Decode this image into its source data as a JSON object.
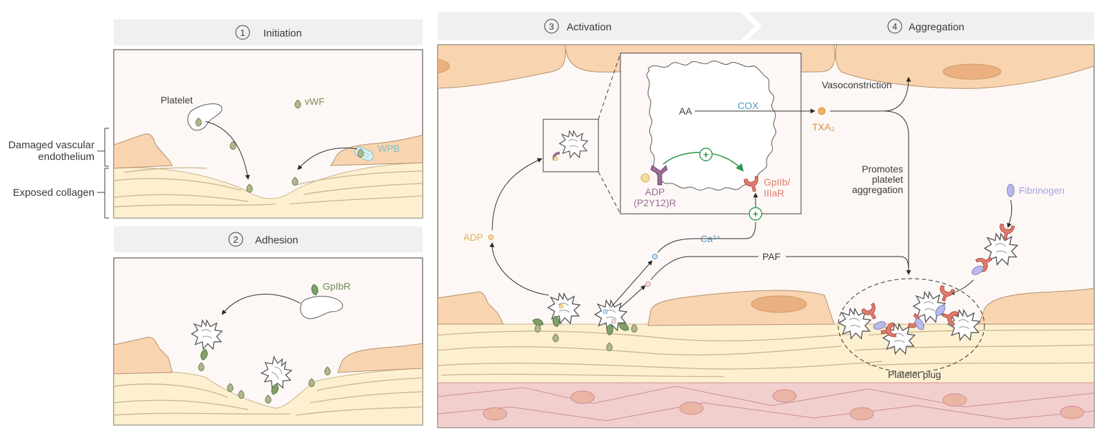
{
  "colors": {
    "panel_bg": "#fdf8f5",
    "header_bg": "#f0f0f0",
    "tissue": "#f8d5b0",
    "tissue_stroke": "#b38f6b",
    "collagen": "#fcf0d0",
    "collagen_stroke": "#c9b48a",
    "smooth_muscle": "#f2cfcf",
    "nucleus": "#ebb5a5",
    "vwf": "#9aa77a",
    "wpb": "#7fbfc3",
    "adp": "#d9b158",
    "receptor_adp": "#9a6b97",
    "gp2b3a": "#e07b6d",
    "txa2": "#d68e3b",
    "cox": "#4a9cc7",
    "ca": "#5a95c8",
    "green": "#2e9a4a",
    "fibrinogen": "#a3a3df",
    "text": "#3a3a3a"
  },
  "stages": {
    "initiation": {
      "number": "1",
      "label": "Initiation"
    },
    "adhesion": {
      "number": "2",
      "label": "Adhesion"
    },
    "activation": {
      "number": "3",
      "label": "Activation"
    },
    "aggregation": {
      "number": "4",
      "label": "Aggregation"
    }
  },
  "side_labels": {
    "damaged_line1": "Damaged vascular",
    "damaged_line2": "endothelium",
    "collagen": "Exposed collagen"
  },
  "initiation_labels": {
    "platelet": "Platelet",
    "vwf": "vWF",
    "wpb": "WPB"
  },
  "adhesion_labels": {
    "gpibr": "GpIbR"
  },
  "activation_labels": {
    "aa": "AA",
    "cox": "COX",
    "txa2": "TXA₂",
    "adp_receptor_line1": "ADP",
    "adp_receptor_line2": "(P2Y12)R",
    "gp_line1": "GpIIb/",
    "gp_line2": "IIIaR",
    "adp": "ADP",
    "ca": "Ca²⁺",
    "paf": "PAF",
    "plus": "+"
  },
  "aggregation_labels": {
    "vasoconstriction": "Vasoconstriction",
    "promotes_line1": "Promotes",
    "promotes_line2": "platelet",
    "promotes_line3": "aggregation",
    "fibrinogen": "Fibrinogen",
    "platelet_plug": "Platelet plug"
  }
}
